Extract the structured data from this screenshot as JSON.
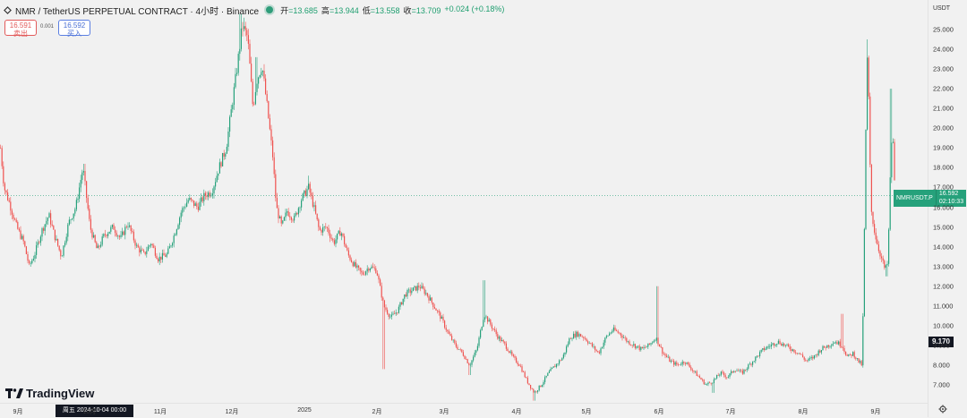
{
  "header": {
    "symbol_title": "NMR / TetherUS PERPETUAL CONTRACT · 4小时 · Binance",
    "ohlc": [
      {
        "label": "开",
        "value": "=13.685"
      },
      {
        "label": "高",
        "value": "=13.944"
      },
      {
        "label": "低",
        "value": "=13.558"
      },
      {
        "label": "收",
        "value": "=13.709"
      },
      {
        "label": "",
        "value": "+0.024 (+0.18%)"
      }
    ],
    "status_color": "#2f9d7a"
  },
  "trade": {
    "sell_price": "16.591",
    "sell_label": "卖出",
    "spread": "0.001",
    "buy_price": "16.592",
    "buy_label": "买入"
  },
  "logo": {
    "text": "TradingView"
  },
  "axis": {
    "unit": "USDT",
    "cursor_price": "9.170",
    "cursor_time": "周五 2024-10-04   00:00"
  },
  "last_price": {
    "symbol": "NMRUSDT.P",
    "price": "16.592",
    "countdown": "02:10:33",
    "color": "#26a17b"
  },
  "colors": {
    "up": "#26a17b",
    "down": "#ef5350"
  },
  "chart_data": {
    "type": "candlestick",
    "y_ticks": [
      "25.000",
      "24.000",
      "23.000",
      "22.000",
      "21.000",
      "20.000",
      "19.000",
      "18.000",
      "17.000",
      "16.000",
      "15.000",
      "14.000",
      "13.000",
      "12.000",
      "11.000",
      "10.000",
      "9.000",
      "8.000",
      "7.000"
    ],
    "y_range": [
      6.0,
      25.6
    ],
    "x_labels": [
      "9月",
      "10月",
      "11月",
      "12月",
      "2025",
      "2月",
      "3月",
      "4月",
      "5月",
      "6月",
      "7月",
      "8月",
      "9月"
    ],
    "price_path": [
      [
        0,
        19.0
      ],
      [
        4,
        17.0
      ],
      [
        10,
        16.2
      ],
      [
        18,
        15.0
      ],
      [
        26,
        14.2
      ],
      [
        32,
        13.0
      ],
      [
        38,
        13.6
      ],
      [
        46,
        14.8
      ],
      [
        54,
        15.6
      ],
      [
        60,
        14.6
      ],
      [
        68,
        13.5
      ],
      [
        76,
        15.2
      ],
      [
        84,
        16.0
      ],
      [
        92,
        18.0
      ],
      [
        100,
        15.0
      ],
      [
        108,
        13.8
      ],
      [
        116,
        14.6
      ],
      [
        126,
        15.0
      ],
      [
        134,
        14.4
      ],
      [
        142,
        15.2
      ],
      [
        152,
        14.0
      ],
      [
        160,
        13.6
      ],
      [
        168,
        14.2
      ],
      [
        176,
        13.4
      ],
      [
        186,
        13.6
      ],
      [
        194,
        14.6
      ],
      [
        202,
        15.8
      ],
      [
        210,
        16.4
      ],
      [
        220,
        16.0
      ],
      [
        228,
        16.6
      ],
      [
        236,
        16.8
      ],
      [
        244,
        18.0
      ],
      [
        252,
        19.0
      ],
      [
        258,
        21.0
      ],
      [
        264,
        23.0
      ],
      [
        270,
        25.2
      ],
      [
        276,
        24.6
      ],
      [
        282,
        21.0
      ],
      [
        286,
        22.4
      ],
      [
        292,
        23.2
      ],
      [
        298,
        21.0
      ],
      [
        304,
        18.6
      ],
      [
        308,
        16.0
      ],
      [
        314,
        15.0
      ],
      [
        320,
        15.8
      ],
      [
        328,
        15.4
      ],
      [
        336,
        16.4
      ],
      [
        344,
        17.0
      ],
      [
        350,
        16.0
      ],
      [
        356,
        14.8
      ],
      [
        364,
        15.0
      ],
      [
        372,
        14.2
      ],
      [
        380,
        14.8
      ],
      [
        388,
        13.6
      ],
      [
        396,
        13.0
      ],
      [
        404,
        12.6
      ],
      [
        412,
        13.0
      ],
      [
        420,
        12.8
      ],
      [
        428,
        11.0
      ],
      [
        436,
        10.4
      ],
      [
        444,
        10.8
      ],
      [
        452,
        11.6
      ],
      [
        460,
        11.8
      ],
      [
        468,
        12.0
      ],
      [
        476,
        11.6
      ],
      [
        484,
        11.0
      ],
      [
        492,
        10.4
      ],
      [
        500,
        9.6
      ],
      [
        508,
        9.0
      ],
      [
        516,
        8.6
      ],
      [
        524,
        8.0
      ],
      [
        532,
        8.8
      ],
      [
        540,
        10.6
      ],
      [
        548,
        10.0
      ],
      [
        556,
        9.4
      ],
      [
        564,
        9.0
      ],
      [
        572,
        8.4
      ],
      [
        580,
        8.0
      ],
      [
        588,
        7.2
      ],
      [
        596,
        6.6
      ],
      [
        604,
        7.0
      ],
      [
        612,
        7.6
      ],
      [
        620,
        8.0
      ],
      [
        628,
        8.4
      ],
      [
        636,
        9.4
      ],
      [
        644,
        9.6
      ],
      [
        652,
        9.4
      ],
      [
        660,
        9.0
      ],
      [
        668,
        8.6
      ],
      [
        676,
        9.4
      ],
      [
        684,
        9.8
      ],
      [
        692,
        9.6
      ],
      [
        700,
        9.2
      ],
      [
        708,
        9.0
      ],
      [
        716,
        8.8
      ],
      [
        724,
        9.0
      ],
      [
        732,
        9.4
      ],
      [
        740,
        8.6
      ],
      [
        748,
        8.2
      ],
      [
        756,
        8.0
      ],
      [
        764,
        8.2
      ],
      [
        772,
        7.8
      ],
      [
        780,
        7.4
      ],
      [
        788,
        7.0
      ],
      [
        796,
        7.2
      ],
      [
        804,
        7.6
      ],
      [
        812,
        7.4
      ],
      [
        820,
        7.8
      ],
      [
        828,
        7.6
      ],
      [
        836,
        8.0
      ],
      [
        844,
        8.4
      ],
      [
        852,
        8.8
      ],
      [
        860,
        9.0
      ],
      [
        868,
        9.2
      ],
      [
        876,
        9.0
      ],
      [
        884,
        8.8
      ],
      [
        892,
        8.6
      ],
      [
        900,
        8.2
      ],
      [
        908,
        8.4
      ],
      [
        916,
        8.8
      ],
      [
        924,
        9.0
      ],
      [
        932,
        9.2
      ],
      [
        940,
        9.0
      ],
      [
        946,
        8.4
      ],
      [
        952,
        8.6
      ],
      [
        958,
        8.2
      ],
      [
        962,
        8.0
      ],
      [
        964,
        12.0
      ],
      [
        966,
        19.0
      ],
      [
        968,
        23.4
      ],
      [
        970,
        21.0
      ],
      [
        972,
        16.0
      ],
      [
        976,
        14.8
      ],
      [
        980,
        14.0
      ],
      [
        984,
        13.4
      ],
      [
        988,
        12.8
      ],
      [
        991,
        13.2
      ],
      [
        994,
        18.0
      ],
      [
        996,
        20.2
      ],
      [
        998,
        17.6
      ],
      [
        1000,
        16.6
      ]
    ],
    "spikes": [
      [
        94,
        18.2
      ],
      [
        268,
        25.8
      ],
      [
        272,
        25.6
      ],
      [
        286,
        23.6
      ],
      [
        344,
        17.6
      ],
      [
        540,
        12.3
      ],
      [
        733,
        12.0
      ],
      [
        940,
        10.6
      ],
      [
        968,
        24.5
      ],
      [
        995,
        22.0
      ]
    ],
    "wicks_low": [
      [
        428,
        7.8
      ],
      [
        524,
        7.5
      ],
      [
        596,
        6.2
      ],
      [
        796,
        6.6
      ],
      [
        990,
        12.5
      ]
    ]
  }
}
